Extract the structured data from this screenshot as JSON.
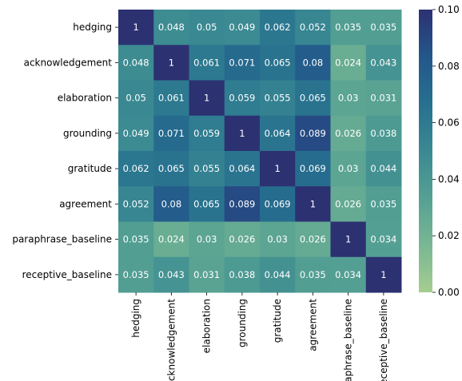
{
  "chart_data": {
    "type": "heatmap",
    "title": "",
    "xlabel": "",
    "ylabel": "",
    "categories": [
      "hedging",
      "acknowledgement",
      "elaboration",
      "grounding",
      "gratitude",
      "agreement",
      "paraphrase_baseline",
      "receptive_baseline"
    ],
    "matrix": [
      [
        1,
        0.048,
        0.05,
        0.049,
        0.062,
        0.052,
        0.035,
        0.035
      ],
      [
        0.048,
        1,
        0.061,
        0.071,
        0.065,
        0.08,
        0.024,
        0.043
      ],
      [
        0.05,
        0.061,
        1,
        0.059,
        0.055,
        0.065,
        0.03,
        0.031
      ],
      [
        0.049,
        0.071,
        0.059,
        1,
        0.064,
        0.089,
        0.026,
        0.038
      ],
      [
        0.062,
        0.065,
        0.055,
        0.064,
        1,
        0.069,
        0.03,
        0.044
      ],
      [
        0.052,
        0.08,
        0.065,
        0.089,
        0.069,
        1,
        0.026,
        0.035
      ],
      [
        0.035,
        0.024,
        0.03,
        0.026,
        0.03,
        0.026,
        1,
        0.034
      ],
      [
        0.035,
        0.043,
        0.031,
        0.038,
        0.044,
        0.035,
        0.034,
        1
      ]
    ],
    "value_labels": [
      [
        "1",
        "0.048",
        "0.05",
        "0.049",
        "0.062",
        "0.052",
        "0.035",
        "0.035"
      ],
      [
        "0.048",
        "1",
        "0.061",
        "0.071",
        "0.065",
        "0.08",
        "0.024",
        "0.043"
      ],
      [
        "0.05",
        "0.061",
        "1",
        "0.059",
        "0.055",
        "0.065",
        "0.03",
        "0.031"
      ],
      [
        "0.049",
        "0.071",
        "0.059",
        "1",
        "0.064",
        "0.089",
        "0.026",
        "0.038"
      ],
      [
        "0.062",
        "0.065",
        "0.055",
        "0.064",
        "1",
        "0.069",
        "0.03",
        "0.044"
      ],
      [
        "0.052",
        "0.08",
        "0.065",
        "0.089",
        "0.069",
        "1",
        "0.026",
        "0.035"
      ],
      [
        "0.035",
        "0.024",
        "0.03",
        "0.026",
        "0.03",
        "0.026",
        "1",
        "0.034"
      ],
      [
        "0.035",
        "0.043",
        "0.031",
        "0.038",
        "0.044",
        "0.035",
        "0.034",
        "1"
      ]
    ],
    "colorscale": {
      "name": "crest",
      "vmin": 0.0,
      "vmax": 0.1,
      "stops": [
        "#a5cd90",
        "#79b793",
        "#55a093",
        "#3a8992",
        "#27708f",
        "#23578b",
        "#2c3172"
      ],
      "ticks": [
        "0.00",
        "0.02",
        "0.04",
        "0.06",
        "0.08",
        "0.10"
      ]
    },
    "grid": false,
    "legend": "colorbar-right"
  }
}
